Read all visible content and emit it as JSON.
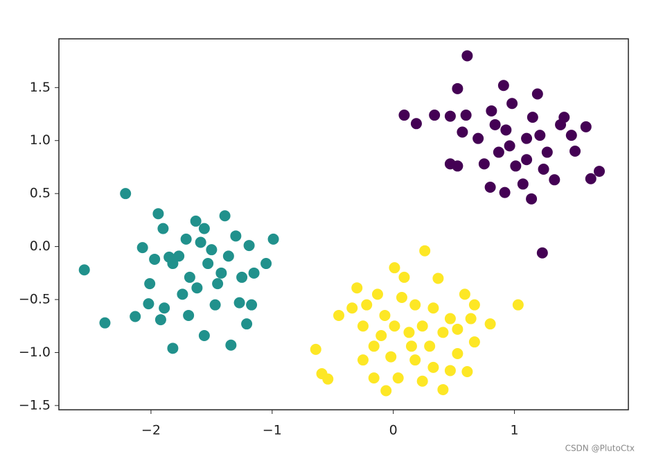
{
  "chart_data": {
    "type": "scatter",
    "xlim": [
      -2.76,
      1.94
    ],
    "ylim": [
      -1.54,
      1.96
    ],
    "xticks": [
      {
        "value": -2,
        "label": "−2"
      },
      {
        "value": -1,
        "label": "−1"
      },
      {
        "value": 0,
        "label": "0"
      },
      {
        "value": 1,
        "label": "1"
      }
    ],
    "yticks": [
      {
        "value": -1.5,
        "label": "−1.5"
      },
      {
        "value": -1,
        "label": "−1.0"
      },
      {
        "value": -0.5,
        "label": "−0.5"
      },
      {
        "value": 0,
        "label": "0.0"
      },
      0.5,
      {
        "value": 1,
        "label": "1.0"
      },
      1.5
    ],
    "series": [
      {
        "color": "#440154",
        "x": [
          0.61,
          0.53,
          0.09,
          0.19,
          0.34,
          0.47,
          0.6,
          0.91,
          1.19,
          1.23,
          1.7,
          1.63,
          1.59,
          1.5,
          1.14,
          0.92,
          0.8,
          0.47,
          0.57,
          0.7,
          0.81,
          0.98,
          1.1,
          1.27,
          1.33,
          1.01,
          0.87,
          1.15,
          1.38,
          0.75,
          0.93,
          1.24,
          1.07,
          1.41,
          0.53,
          0.96,
          1.21,
          0.84,
          1.1,
          1.47
        ],
        "values": [
          1.8,
          1.49,
          1.24,
          1.16,
          1.24,
          1.23,
          1.24,
          1.52,
          1.44,
          -0.06,
          0.71,
          0.64,
          1.13,
          0.9,
          0.45,
          0.51,
          0.56,
          0.78,
          1.08,
          1.02,
          1.28,
          1.35,
          1.02,
          0.89,
          0.63,
          0.76,
          0.89,
          1.22,
          1.15,
          0.78,
          1.1,
          0.73,
          0.59,
          1.22,
          0.76,
          0.95,
          1.05,
          1.15,
          0.82,
          1.05
        ]
      },
      {
        "color": "#21918c",
        "x": [
          -2.21,
          -2.55,
          -2.38,
          -2.13,
          -1.82,
          -1.34,
          -0.99,
          -1.05,
          -1.94,
          -2.07,
          -1.39,
          -1.63,
          -1.9,
          -1.59,
          -1.77,
          -1.53,
          -1.42,
          -1.3,
          -1.19,
          -1.25,
          -1.68,
          -1.97,
          -2.01,
          -2.02,
          -1.89,
          -1.92,
          -1.69,
          -1.56,
          -1.47,
          -1.27,
          -1.21,
          -1.17,
          -1.62,
          -1.5,
          -1.36,
          -1.71,
          -1.82,
          -1.56,
          -1.74,
          -1.45,
          -1.15,
          -1.85
        ],
        "values": [
          0.5,
          -0.22,
          -0.72,
          -0.66,
          -0.96,
          -0.93,
          0.07,
          -0.16,
          0.31,
          -0.01,
          0.29,
          0.24,
          0.17,
          0.04,
          -0.09,
          -0.16,
          -0.25,
          0.1,
          0.01,
          -0.29,
          -0.29,
          -0.12,
          -0.35,
          -0.54,
          -0.58,
          -0.69,
          -0.65,
          -0.84,
          -0.55,
          -0.53,
          -0.73,
          -0.55,
          -0.39,
          -0.03,
          -0.09,
          0.07,
          -0.16,
          0.17,
          -0.45,
          -0.35,
          -0.25,
          -0.1
        ]
      },
      {
        "color": "#fde725",
        "x": [
          0.26,
          -0.64,
          -0.59,
          -0.54,
          -0.45,
          -0.3,
          -0.06,
          0.41,
          1.03,
          0.8,
          0.67,
          0.67,
          0.59,
          0.37,
          0.01,
          0.09,
          -0.13,
          -0.34,
          -0.25,
          -0.16,
          -0.25,
          -0.16,
          0.04,
          0.24,
          0.33,
          0.47,
          0.61,
          0.53,
          0.41,
          0.24,
          0.13,
          0.01,
          -0.07,
          0.18,
          0.33,
          0.47,
          0.53,
          0.15,
          -0.02,
          0.18,
          0.3,
          0.07,
          -0.22,
          -0.1,
          0.64
        ],
        "values": [
          -0.04,
          -0.97,
          -1.2,
          -1.25,
          -0.65,
          -0.39,
          -1.36,
          -1.35,
          -0.55,
          -0.73,
          -0.9,
          -0.55,
          -0.45,
          -0.3,
          -0.2,
          -0.29,
          -0.45,
          -0.58,
          -0.75,
          -0.94,
          -1.07,
          -1.24,
          -1.24,
          -1.27,
          -1.14,
          -1.17,
          -1.18,
          -1.01,
          -0.81,
          -0.75,
          -0.81,
          -0.75,
          -0.65,
          -0.55,
          -0.58,
          -0.68,
          -0.78,
          -0.94,
          -1.04,
          -1.07,
          -0.94,
          -0.48,
          -0.55,
          -0.84,
          -0.68
        ]
      }
    ]
  },
  "watermark": "CSDN @PlutoCtx"
}
